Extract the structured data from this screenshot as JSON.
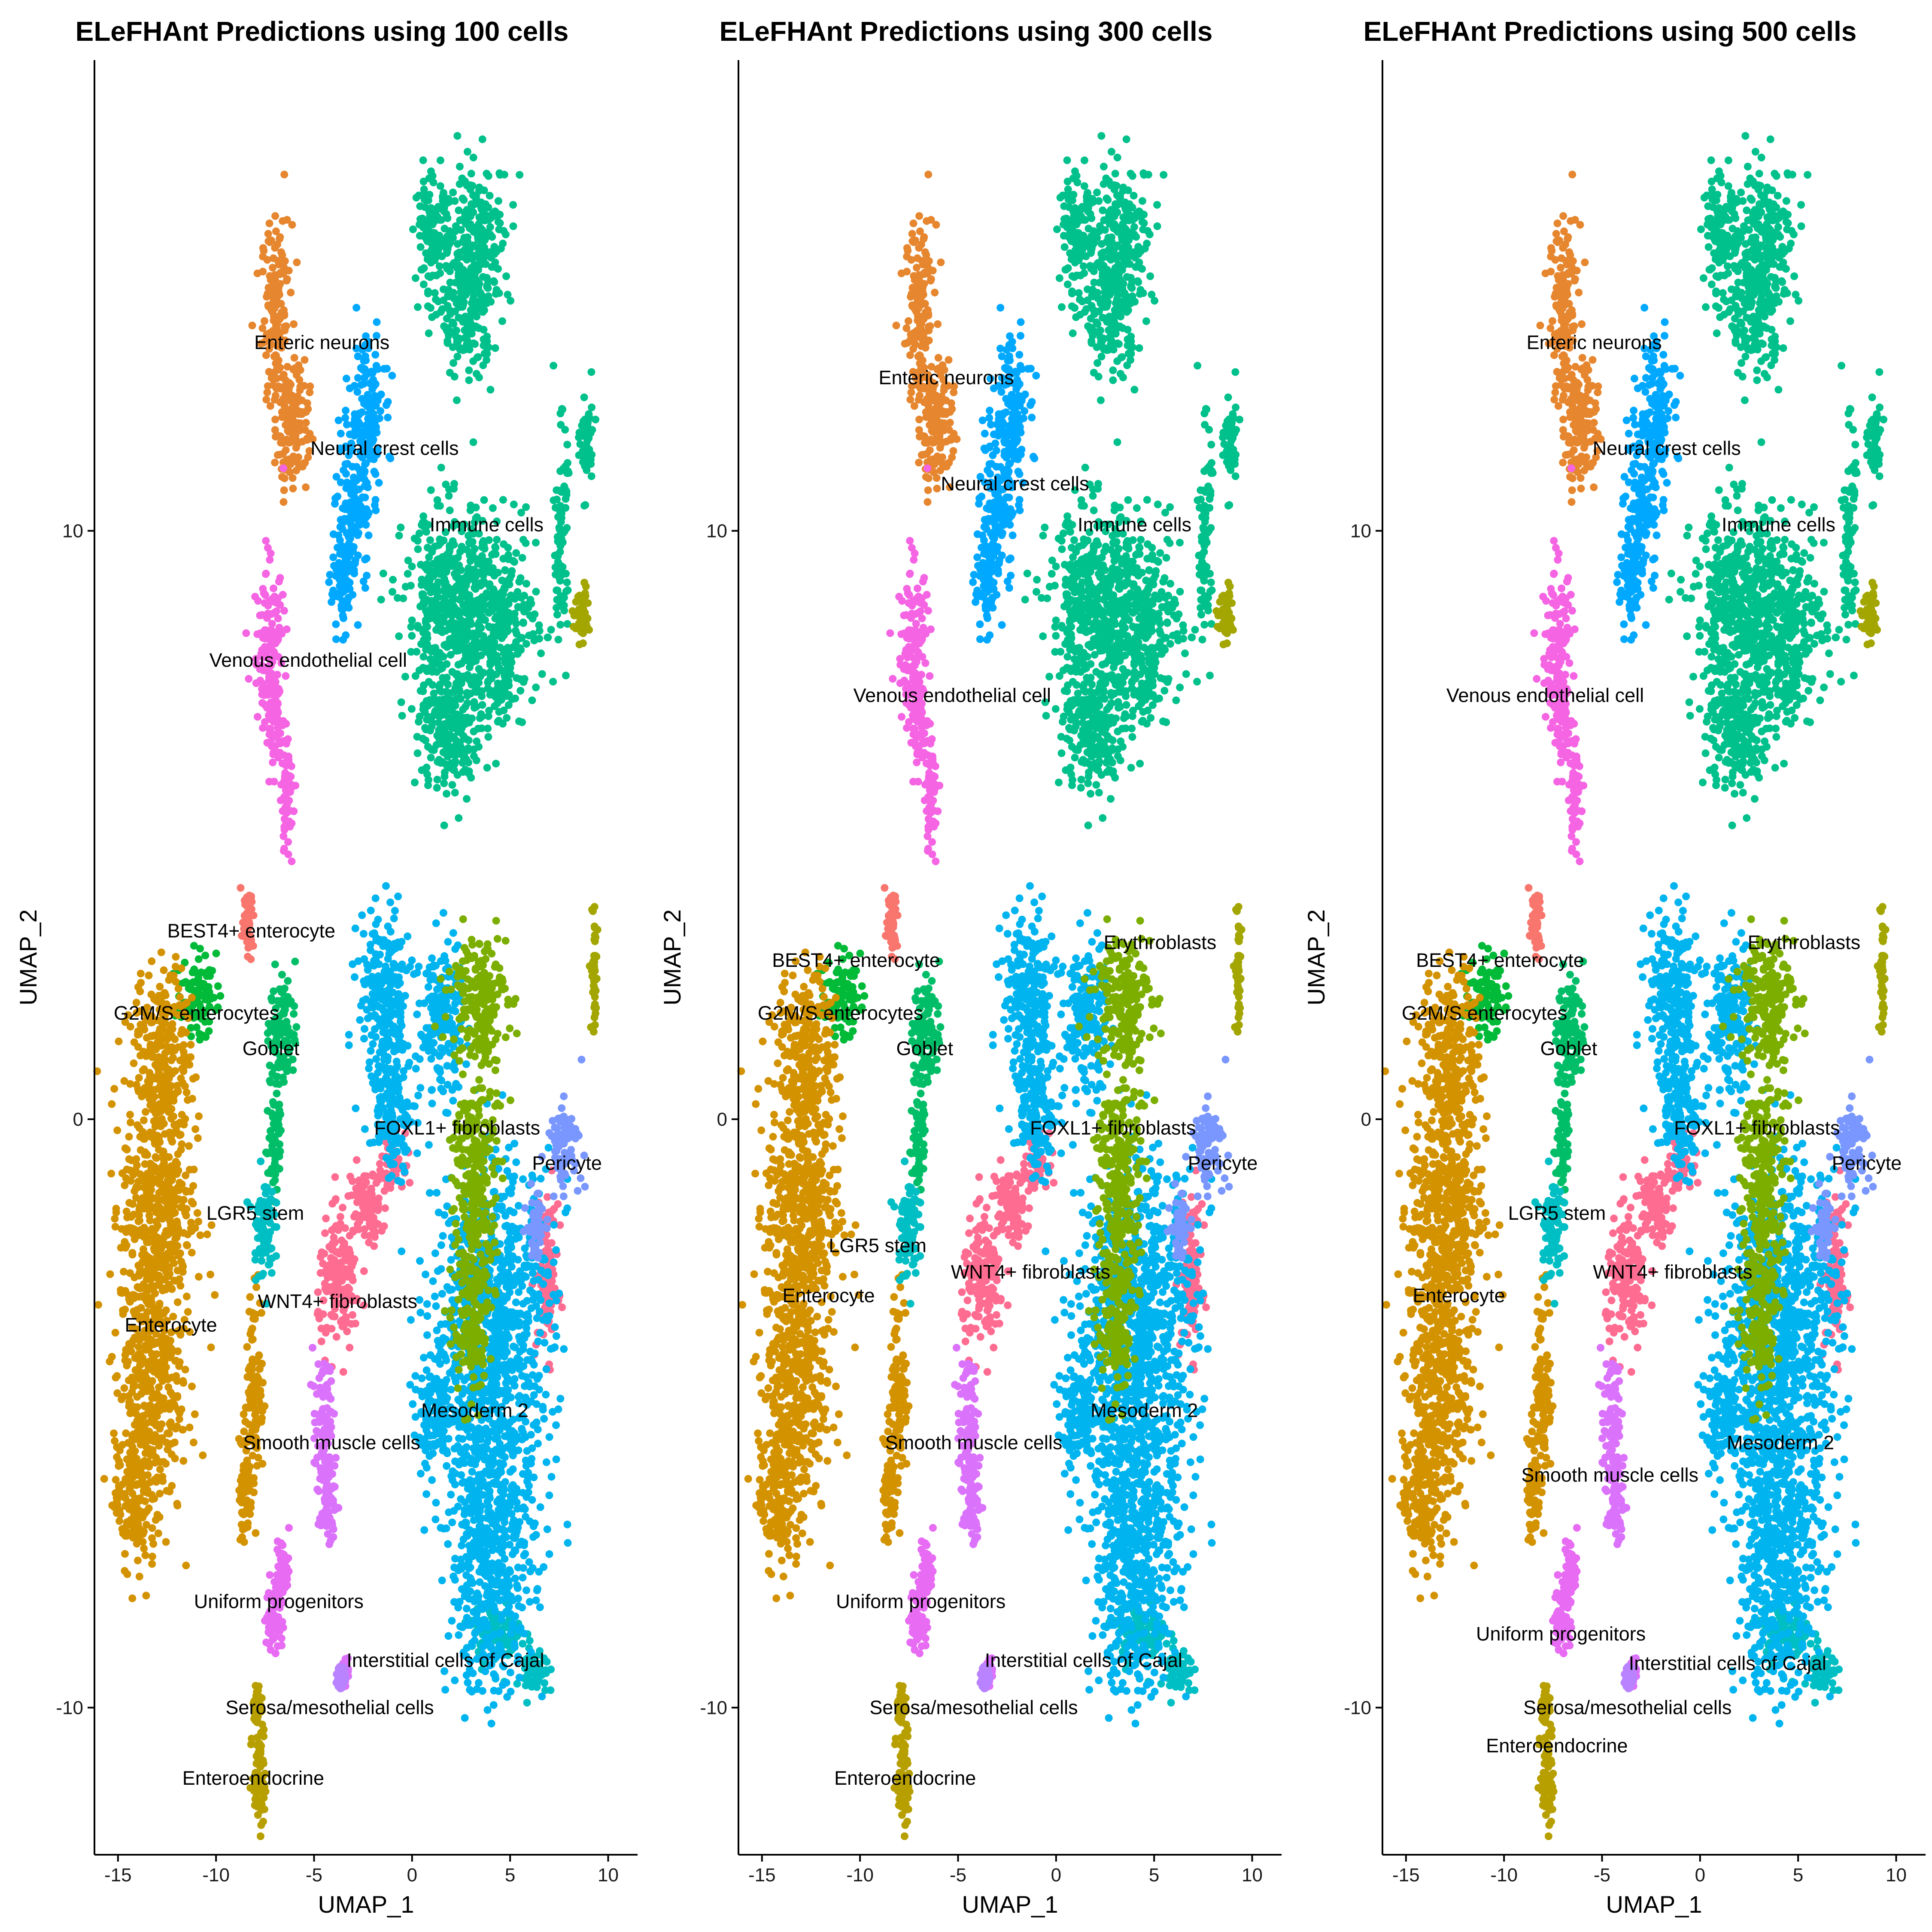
{
  "chart_data": [
    {
      "type": "scatter",
      "title": "ELeFHAnt Predictions using 100 cells",
      "xlabel": "UMAP_1",
      "ylabel": "UMAP_2",
      "xlim": [
        -16.2,
        11.5
      ],
      "ylim": [
        -12.5,
        18
      ],
      "xticks": [
        -15,
        -10,
        -5,
        0,
        5,
        10
      ],
      "yticks": [
        -10,
        0,
        10
      ],
      "grid": false,
      "legend": "none",
      "labels": [
        {
          "text": "Enteric neurons",
          "x": -4.6,
          "y": 13.2
        },
        {
          "text": "Neural crest cells",
          "x": -1.4,
          "y": 11.4
        },
        {
          "text": "Immune cells",
          "x": 3.8,
          "y": 10.1
        },
        {
          "text": "Venous endothelial cell",
          "x": -5.3,
          "y": 7.8
        },
        {
          "text": "BEST4+ enterocyte",
          "x": -8.2,
          "y": 3.2
        },
        {
          "text": "G2M/S enterocytes",
          "x": -11.0,
          "y": 1.8
        },
        {
          "text": "Goblet",
          "x": -7.2,
          "y": 1.2
        },
        {
          "text": "FOXL1+ fibroblasts",
          "x": 2.3,
          "y": -0.15
        },
        {
          "text": "Pericyte",
          "x": 7.9,
          "y": -0.75
        },
        {
          "text": "LGR5 stem",
          "x": -8.0,
          "y": -1.6
        },
        {
          "text": "Enterocyte",
          "x": -12.3,
          "y": -3.5
        },
        {
          "text": "WNT4+ fibroblasts",
          "x": -3.8,
          "y": -3.1
        },
        {
          "text": "Mesoderm 2",
          "x": 3.2,
          "y": -4.95
        },
        {
          "text": "Smooth muscle cells",
          "x": -4.1,
          "y": -5.5
        },
        {
          "text": "Uniform progenitors",
          "x": -6.8,
          "y": -8.2
        },
        {
          "text": "Interstitial cells of Cajal",
          "x": 1.7,
          "y": -9.2
        },
        {
          "text": "Serosa/mesothelial cells",
          "x": -4.2,
          "y": -10.0
        },
        {
          "text": "Enteroendocrine",
          "x": -8.1,
          "y": -11.2
        }
      ]
    },
    {
      "type": "scatter",
      "title": "ELeFHAnt Predictions using 300 cells",
      "xlabel": "UMAP_1",
      "ylabel": "UMAP_2",
      "xlim": [
        -16.2,
        11.5
      ],
      "ylim": [
        -12.5,
        18
      ],
      "xticks": [
        -15,
        -10,
        -5,
        0,
        5,
        10
      ],
      "yticks": [
        -10,
        0,
        10
      ],
      "grid": false,
      "legend": "none",
      "labels": [
        {
          "text": "Enteric neurons",
          "x": -5.6,
          "y": 12.6
        },
        {
          "text": "Neural crest cells",
          "x": -2.1,
          "y": 10.8
        },
        {
          "text": "Immune cells",
          "x": 4.0,
          "y": 10.1
        },
        {
          "text": "Venous endothelial cell",
          "x": -5.3,
          "y": 7.2
        },
        {
          "text": "Erythroblasts",
          "x": 5.3,
          "y": 3.0
        },
        {
          "text": "BEST4+ enterocyte",
          "x": -10.2,
          "y": 2.7
        },
        {
          "text": "G2M/S enterocytes",
          "x": -11.0,
          "y": 1.8
        },
        {
          "text": "Goblet",
          "x": -6.7,
          "y": 1.2
        },
        {
          "text": "FOXL1+ fibroblasts",
          "x": 2.9,
          "y": -0.15
        },
        {
          "text": "Pericyte",
          "x": 8.5,
          "y": -0.75
        },
        {
          "text": "LGR5 stem",
          "x": -9.1,
          "y": -2.15
        },
        {
          "text": "Enterocyte",
          "x": -11.6,
          "y": -3.0
        },
        {
          "text": "WNT4+ fibroblasts",
          "x": -1.3,
          "y": -2.6
        },
        {
          "text": "Mesoderm 2",
          "x": 4.5,
          "y": -4.95
        },
        {
          "text": "Smooth muscle cells",
          "x": -4.2,
          "y": -5.5
        },
        {
          "text": "Uniform progenitors",
          "x": -6.9,
          "y": -8.2
        },
        {
          "text": "Interstitial cells of Cajal",
          "x": 1.4,
          "y": -9.2
        },
        {
          "text": "Serosa/mesothelial cells",
          "x": -4.2,
          "y": -10.0
        },
        {
          "text": "Enteroendocrine",
          "x": -7.7,
          "y": -11.2
        }
      ]
    },
    {
      "type": "scatter",
      "title": "ELeFHAnt Predictions using 500 cells",
      "xlabel": "UMAP_1",
      "ylabel": "UMAP_2",
      "xlim": [
        -16.2,
        11.5
      ],
      "ylim": [
        -12.5,
        18
      ],
      "xticks": [
        -15,
        -10,
        -5,
        0,
        5,
        10
      ],
      "yticks": [
        -10,
        0,
        10
      ],
      "grid": false,
      "legend": "none",
      "labels": [
        {
          "text": "Enteric neurons",
          "x": -5.4,
          "y": 13.2
        },
        {
          "text": "Neural crest cells",
          "x": -1.7,
          "y": 11.4
        },
        {
          "text": "Immune cells",
          "x": 4.0,
          "y": 10.1
        },
        {
          "text": "Venous endothelial cell",
          "x": -7.9,
          "y": 7.2
        },
        {
          "text": "Erythroblasts",
          "x": 5.3,
          "y": 3.0
        },
        {
          "text": "BEST4+ enterocyte",
          "x": -10.2,
          "y": 2.7
        },
        {
          "text": "G2M/S enterocytes",
          "x": -11.0,
          "y": 1.8
        },
        {
          "text": "Goblet",
          "x": -6.7,
          "y": 1.2
        },
        {
          "text": "FOXL1+ fibroblasts",
          "x": 2.9,
          "y": -0.15
        },
        {
          "text": "Pericyte",
          "x": 8.5,
          "y": -0.75
        },
        {
          "text": "LGR5 stem",
          "x": -7.3,
          "y": -1.6
        },
        {
          "text": "Enterocyte",
          "x": -12.3,
          "y": -3.0
        },
        {
          "text": "WNT4+ fibroblasts",
          "x": -1.4,
          "y": -2.6
        },
        {
          "text": "Mesoderm 2",
          "x": 4.1,
          "y": -5.5
        },
        {
          "text": "Smooth muscle cells",
          "x": -4.6,
          "y": -6.05
        },
        {
          "text": "Uniform progenitors",
          "x": -7.1,
          "y": -8.75
        },
        {
          "text": "Interstitial cells of Cajal",
          "x": 1.4,
          "y": -9.25
        },
        {
          "text": "Serosa/mesothelial cells",
          "x": -3.7,
          "y": -10.0
        },
        {
          "text": "Enteroendocrine",
          "x": -7.3,
          "y": -10.65
        }
      ]
    }
  ],
  "clusters": [
    {
      "name": "Enteric neurons",
      "color": "#E6862F",
      "blobs": [
        [
          -6.9,
          13.6,
          0.7,
          1.5
        ],
        [
          -6.1,
          11.8,
          0.8,
          1.0
        ]
      ]
    },
    {
      "name": "Neural crest cells",
      "color": "#00A9FF",
      "blobs": [
        [
          -2.3,
          12.0,
          0.8,
          1.2
        ],
        [
          -3.0,
          10.3,
          0.8,
          1.3
        ],
        [
          -3.6,
          9.0,
          0.5,
          0.6
        ]
      ]
    },
    {
      "name": "Immune cells",
      "color": "#00C08B",
      "blobs": [
        [
          1.0,
          15.0,
          0.8,
          0.9
        ],
        [
          3.3,
          15.0,
          1.6,
          1.1
        ],
        [
          2.8,
          13.6,
          1.2,
          0.9
        ],
        [
          1.8,
          8.6,
          2.0,
          1.6
        ],
        [
          4.2,
          8.4,
          2.0,
          1.5
        ],
        [
          1.9,
          6.5,
          1.4,
          1.0
        ],
        [
          7.6,
          10.0,
          0.3,
          1.6
        ],
        [
          8.9,
          11.5,
          0.3,
          0.8
        ]
      ]
    },
    {
      "name": "Venous endothelial cell",
      "color": "#F564E3",
      "blobs": [
        [
          -7.3,
          8.0,
          0.7,
          1.3
        ],
        [
          -7.0,
          6.8,
          0.4,
          0.7
        ],
        [
          -6.4,
          5.5,
          0.3,
          0.9
        ]
      ]
    },
    {
      "name": "BEST4+ enterocyte",
      "color": "#F8766D",
      "blobs": [
        [
          -8.4,
          3.3,
          0.3,
          0.5
        ]
      ]
    },
    {
      "name": "G2M/S enterocytes",
      "color": "#00BA38",
      "blobs": [
        [
          -11.0,
          2.1,
          0.9,
          0.6
        ]
      ]
    },
    {
      "name": "Goblet",
      "color": "#00BE67",
      "blobs": [
        [
          -6.6,
          1.5,
          0.6,
          0.9
        ],
        [
          -7.0,
          -0.2,
          0.3,
          1.0
        ]
      ]
    },
    {
      "name": "Enterocyte",
      "color": "#D39200",
      "blobs": [
        [
          -12.7,
          1.2,
          1.4,
          1.2
        ],
        [
          -12.9,
          -1.5,
          1.7,
          2.0
        ],
        [
          -13.4,
          -4.5,
          1.5,
          2.2
        ],
        [
          -14.3,
          -6.5,
          0.8,
          1.0
        ],
        [
          -8.0,
          -4.5,
          0.4,
          1.5
        ],
        [
          -8.5,
          -6.2,
          0.3,
          1.0
        ]
      ]
    },
    {
      "name": "LGR5 stem",
      "color": "#00BFC4",
      "blobs": [
        [
          -7.6,
          -1.8,
          0.5,
          0.8
        ],
        [
          4.3,
          -8.7,
          1.2,
          0.5
        ],
        [
          6.3,
          -9.4,
          0.6,
          0.4
        ]
      ]
    },
    {
      "name": "WNT4+ fibroblasts",
      "color": "#FF6C91",
      "blobs": [
        [
          -3.7,
          -2.8,
          1.0,
          1.0
        ],
        [
          -2.3,
          -1.4,
          0.9,
          0.6
        ],
        [
          -1.0,
          -0.7,
          0.5,
          0.4
        ],
        [
          6.9,
          -2.7,
          0.5,
          1.2
        ]
      ]
    },
    {
      "name": "Mesoderm 2",
      "color": "#00B4EF",
      "blobs": [
        [
          -1.4,
          2.1,
          1.2,
          1.3
        ],
        [
          1.5,
          1.7,
          1.0,
          1.2
        ],
        [
          -1.0,
          0.2,
          1.0,
          1.0
        ],
        [
          4.1,
          -3.5,
          2.8,
          2.6
        ],
        [
          4.0,
          -7.3,
          2.0,
          2.2
        ],
        [
          1.2,
          -5.0,
          1.0,
          0.7
        ]
      ]
    },
    {
      "name": "Mesoderm 2",
      "color": "#7CAE00",
      "blobs": [
        [
          3.4,
          2.1,
          1.3,
          1.0
        ],
        [
          3.2,
          -1.0,
          1.0,
          2.0
        ],
        [
          3.0,
          -3.5,
          0.8,
          1.2
        ]
      ]
    },
    {
      "name": "Pericyte",
      "color": "#7997FF",
      "blobs": [
        [
          7.8,
          -0.4,
          0.8,
          0.6
        ],
        [
          6.3,
          -1.8,
          0.4,
          0.5
        ]
      ]
    },
    {
      "name": "Smooth muscle cells",
      "color": "#DB72FB",
      "blobs": [
        [
          -4.5,
          -5.4,
          0.5,
          1.2
        ],
        [
          -4.3,
          -6.6,
          0.4,
          0.5
        ],
        [
          -3.5,
          -9.4,
          0.2,
          0.2
        ]
      ]
    },
    {
      "name": "Uniform progenitors",
      "color": "#E76BF3",
      "blobs": [
        [
          -7.0,
          -8.5,
          0.4,
          0.6
        ],
        [
          -6.6,
          -7.6,
          0.3,
          0.5
        ]
      ]
    },
    {
      "name": "Interstitial cells of Cajal",
      "color": "#B983FF",
      "blobs": [
        [
          -3.6,
          -9.5,
          0.2,
          0.2
        ]
      ]
    },
    {
      "name": "Enteroendocrine",
      "color": "#B79F00",
      "blobs": [
        [
          -7.8,
          -11.0,
          0.3,
          1.0
        ],
        [
          -7.9,
          -10.0,
          0.2,
          0.3
        ]
      ]
    },
    {
      "name": "Erythroblasts",
      "color": "#A3A500",
      "blobs": [
        [
          9.3,
          2.5,
          0.15,
          1.0
        ],
        [
          8.6,
          8.6,
          0.4,
          0.4
        ]
      ]
    }
  ]
}
